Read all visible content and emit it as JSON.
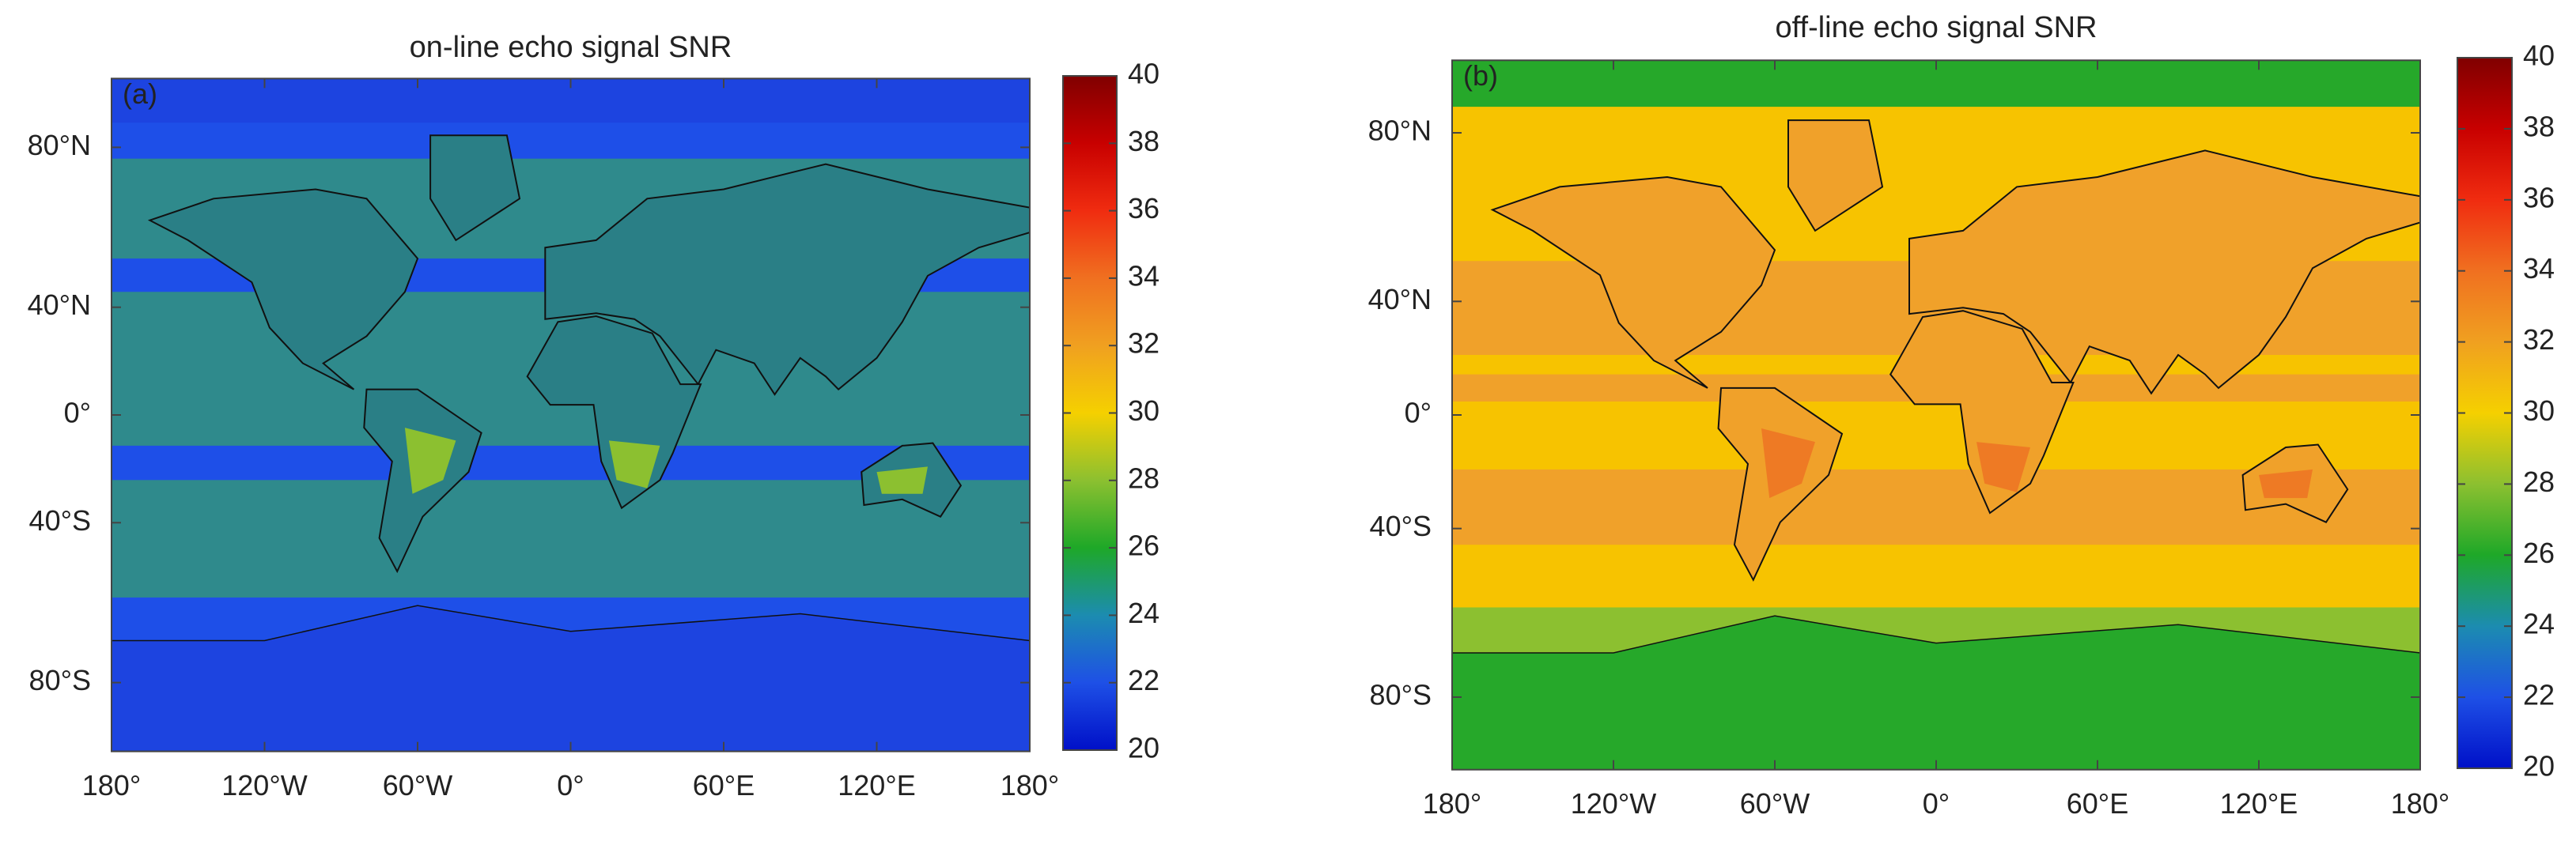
{
  "panels": [
    {
      "label": "(a)",
      "title": "on-line echo signal SNR",
      "xlim": [
        -180,
        180
      ],
      "ylim": [
        -90,
        90
      ],
      "xticks": [
        {
          "value": -180,
          "label": "180°"
        },
        {
          "value": -120,
          "label": "120°W"
        },
        {
          "value": -60,
          "label": "60°W"
        },
        {
          "value": 0,
          "label": "0°"
        },
        {
          "value": 60,
          "label": "60°E"
        },
        {
          "value": 120,
          "label": "120°E"
        },
        {
          "value": 180,
          "label": "180°"
        }
      ],
      "yticks": [
        {
          "value": 80,
          "label": "80°N"
        },
        {
          "value": 40,
          "label": "40°N"
        },
        {
          "value": 0,
          "label": "0°"
        },
        {
          "value": -40,
          "label": "40°S"
        },
        {
          "value": -80,
          "label": "80°S"
        }
      ],
      "colorbar": {
        "range": [
          20,
          40
        ],
        "ticks": [
          20,
          22,
          24,
          26,
          28,
          30,
          32,
          34,
          36,
          38,
          40
        ]
      }
    },
    {
      "label": "(b)",
      "title": "off-line echo signal SNR",
      "xlim": [
        -180,
        180
      ],
      "ylim": [
        -90,
        90
      ],
      "xticks": [
        {
          "value": -180,
          "label": "180°"
        },
        {
          "value": -120,
          "label": "120°W"
        },
        {
          "value": -60,
          "label": "60°W"
        },
        {
          "value": 0,
          "label": "0°"
        },
        {
          "value": 60,
          "label": "60°E"
        },
        {
          "value": 120,
          "label": "120°E"
        },
        {
          "value": 180,
          "label": "180°"
        }
      ],
      "yticks": [
        {
          "value": 80,
          "label": "80°N"
        },
        {
          "value": 40,
          "label": "40°N"
        },
        {
          "value": 0,
          "label": "0°"
        },
        {
          "value": -40,
          "label": "40°S"
        },
        {
          "value": -80,
          "label": "80°S"
        }
      ],
      "colorbar": {
        "range": [
          20,
          40
        ],
        "ticks": [
          20,
          22,
          24,
          26,
          28,
          30,
          32,
          34,
          36,
          38,
          40
        ]
      }
    }
  ]
}
